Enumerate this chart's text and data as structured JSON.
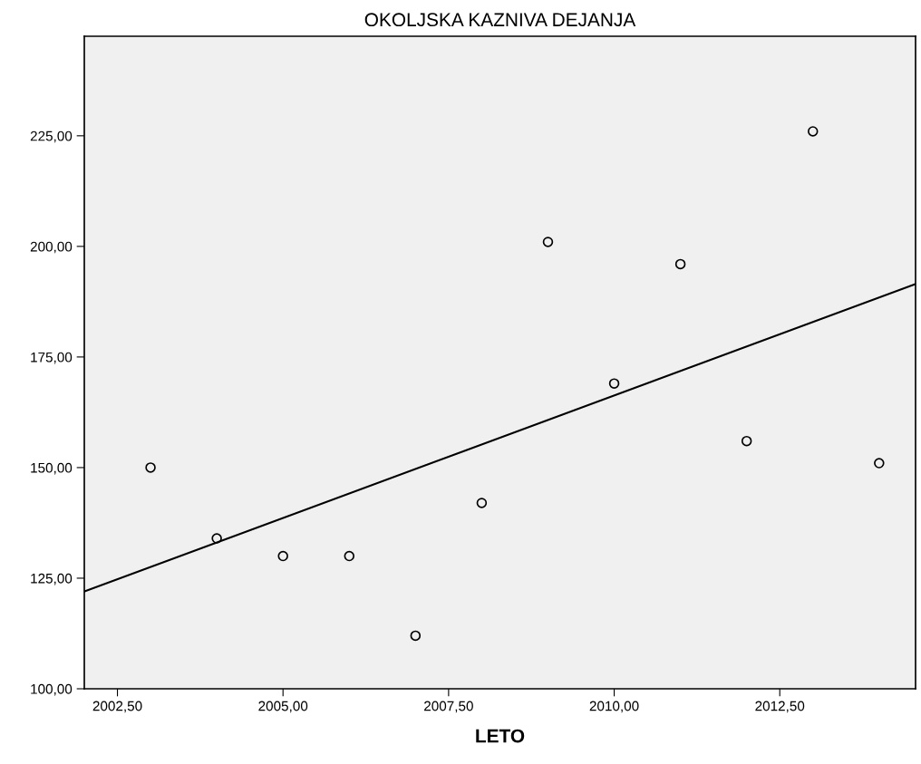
{
  "chart_data": {
    "type": "scatter",
    "title": "OKOLJSKA KAZNIVA DEJANJA",
    "xlabel": "LETO",
    "xlim": [
      2002.0,
      2014.55
    ],
    "ylim": [
      100,
      247.5
    ],
    "xticks": [
      {
        "value": 2002.5,
        "label": "2002,50"
      },
      {
        "value": 2005,
        "label": "2005,00"
      },
      {
        "value": 2007.5,
        "label": "2007,50"
      },
      {
        "value": 2010,
        "label": "2010,00"
      },
      {
        "value": 2012.5,
        "label": "2012,50"
      }
    ],
    "yticks": [
      {
        "value": 100,
        "label": "100,00"
      },
      {
        "value": 125,
        "label": "125,00"
      },
      {
        "value": 150,
        "label": "150,00"
      },
      {
        "value": 175,
        "label": "175,00"
      },
      {
        "value": 200,
        "label": "200,00"
      },
      {
        "value": 225,
        "label": "225,00"
      }
    ],
    "grid": false,
    "series": [
      {
        "color": "#000000",
        "marker": "circle",
        "x": [
          2003,
          2004,
          2005,
          2006,
          2007,
          2008,
          2009,
          2010,
          2011,
          2012,
          2013,
          2014
        ],
        "values": [
          150,
          134,
          130,
          130,
          112,
          142,
          201,
          169,
          196,
          156,
          226,
          151
        ]
      },
      {
        "type": "line",
        "color": "#000000",
        "x": [
          2002.0,
          2014.55
        ],
        "values": [
          122,
          191.5
        ],
        "marker": "none",
        "line_style": "solid"
      }
    ]
  }
}
